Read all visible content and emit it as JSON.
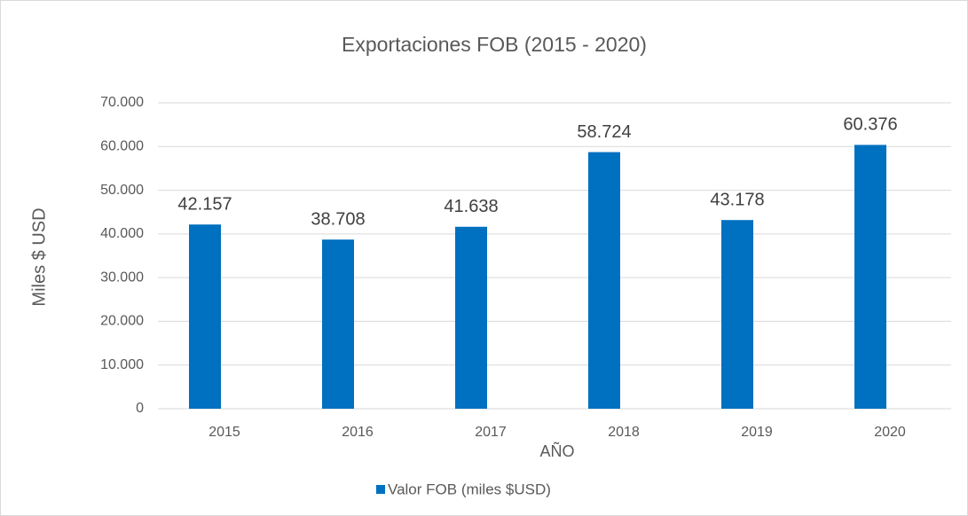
{
  "chart_data": {
    "type": "bar",
    "title": "Exportaciones FOB (2015 - 2020)",
    "x_label": "AÑO",
    "y_label": "Miles $ USD",
    "categories": [
      "2015",
      "2016",
      "2017",
      "2018",
      "2019",
      "2020"
    ],
    "series": [
      {
        "name": "Valor FOB (miles $USD)",
        "color": "#0070c0",
        "values": [
          42157,
          38708,
          41638,
          58724,
          43178,
          60376
        ],
        "value_labels": [
          "42.157",
          "38.708",
          "41.638",
          "58.724",
          "43.178",
          "60.376"
        ]
      }
    ],
    "ylim": [
      0,
      70000
    ],
    "yticks": [
      0,
      {
        "value": 10000,
        "label": "10.000"
      },
      {
        "value": 20000,
        "label": "20.000"
      },
      {
        "value": 30000,
        "label": "30.000"
      },
      {
        "value": 40000,
        "label": "40.000"
      },
      {
        "value": 50000,
        "label": "50.000"
      },
      {
        "value": 60000,
        "label": "60.000"
      },
      {
        "value": 70000,
        "label": "70.000"
      }
    ],
    "grid": true,
    "legend": "bottom"
  }
}
